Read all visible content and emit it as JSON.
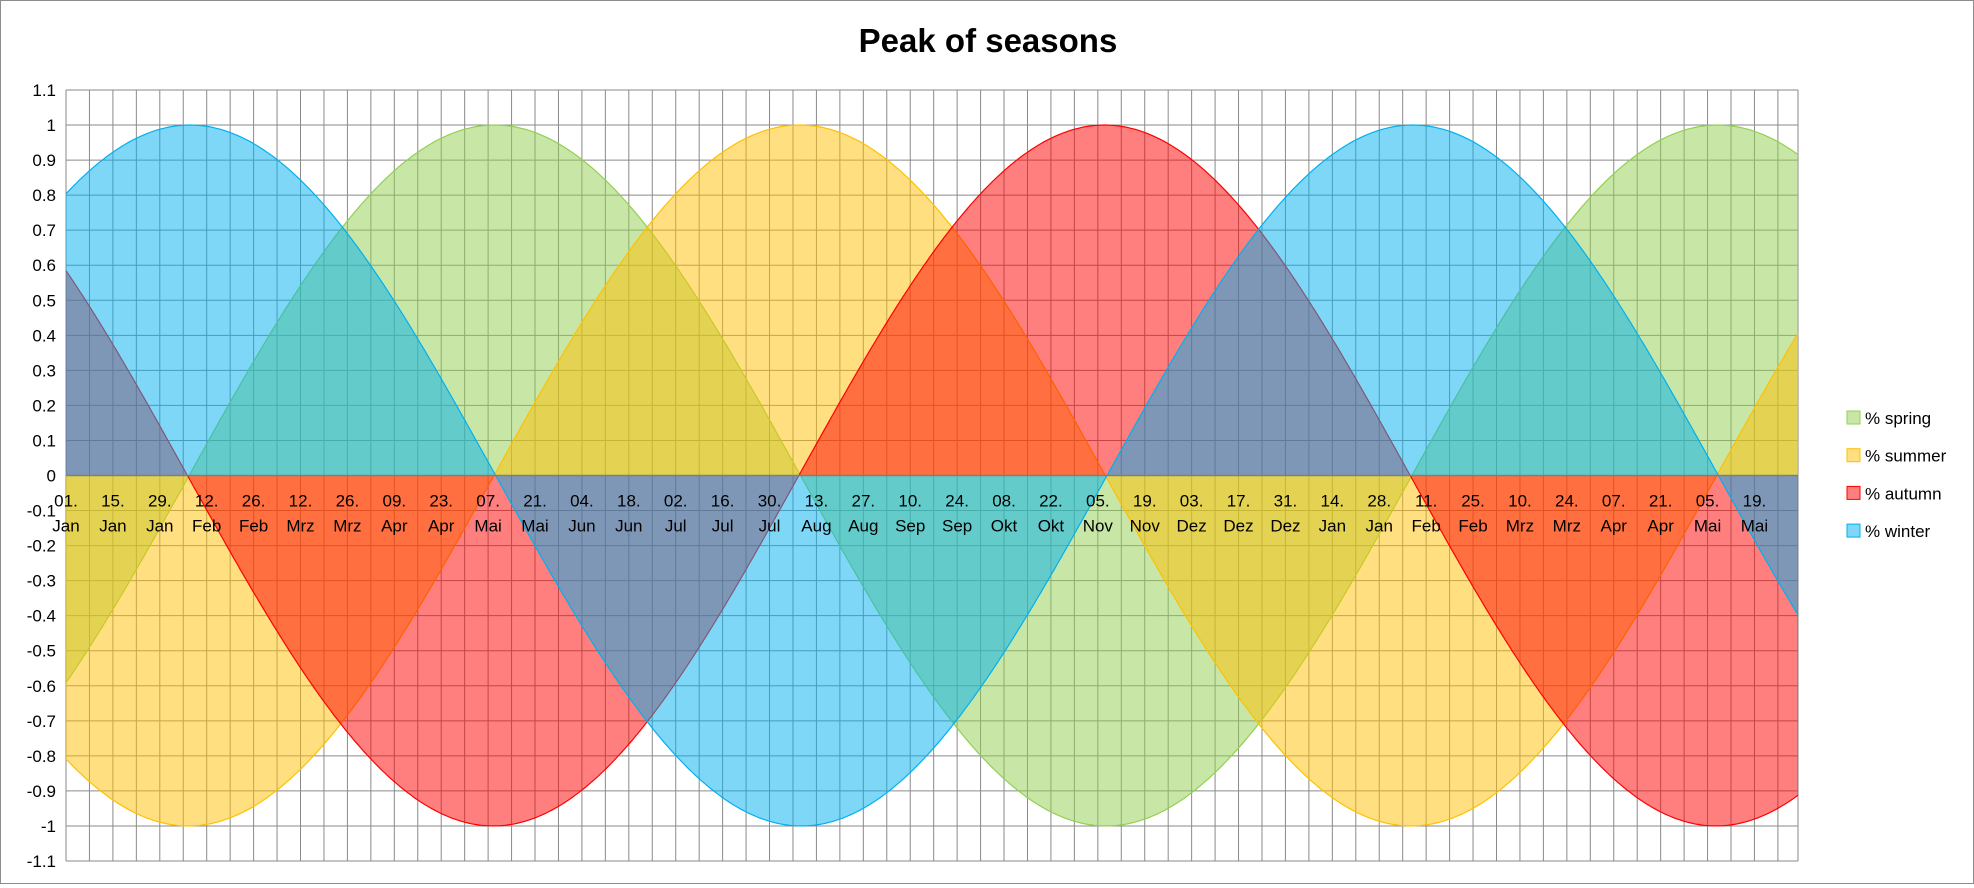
{
  "chart_data": {
    "type": "area",
    "title": "Peak of seasons",
    "xlabel": "",
    "ylabel": "",
    "ylim": [
      -1.1,
      1.1
    ],
    "ytick_step": 0.1,
    "yticks": [
      "1.1",
      "1",
      "0.9",
      "0.8",
      "0.7",
      "0.6",
      "0.5",
      "0.4",
      "0.3",
      "0.2",
      "0.1",
      "0",
      "-0.1",
      "-0.2",
      "-0.3",
      "-0.4",
      "-0.5",
      "-0.6",
      "-0.7",
      "-0.8",
      "-0.9",
      "-1",
      "-1.1"
    ],
    "x_unit": "days since 01. Jan",
    "xlim": [
      0,
      517
    ],
    "xtick_step_days": 14,
    "x_minor_grid_days": 7,
    "grid": true,
    "xtick_labels": [
      [
        "01.",
        "Jan"
      ],
      [
        "15.",
        "Jan"
      ],
      [
        "29.",
        "Jan"
      ],
      [
        "12.",
        "Feb"
      ],
      [
        "26.",
        "Feb"
      ],
      [
        "12.",
        "Mrz"
      ],
      [
        "26.",
        "Mrz"
      ],
      [
        "09.",
        "Apr"
      ],
      [
        "23.",
        "Apr"
      ],
      [
        "07.",
        "Mai"
      ],
      [
        "21.",
        "Mai"
      ],
      [
        "04.",
        "Jun"
      ],
      [
        "18.",
        "Jun"
      ],
      [
        "02.",
        "Jul"
      ],
      [
        "16.",
        "Jul"
      ],
      [
        "30.",
        "Jul"
      ],
      [
        "13.",
        "Aug"
      ],
      [
        "27.",
        "Aug"
      ],
      [
        "10.",
        "Sep"
      ],
      [
        "24.",
        "Sep"
      ],
      [
        "08.",
        "Okt"
      ],
      [
        "22.",
        "Okt"
      ],
      [
        "05.",
        "Nov"
      ],
      [
        "19.",
        "Nov"
      ],
      [
        "03.",
        "Dez"
      ],
      [
        "17.",
        "Dez"
      ],
      [
        "31.",
        "Dez"
      ],
      [
        "14.",
        "Jan"
      ],
      [
        "28.",
        "Jan"
      ],
      [
        "11.",
        "Feb"
      ],
      [
        "25.",
        "Feb"
      ],
      [
        "10.",
        "Mrz"
      ],
      [
        "24.",
        "Mrz"
      ],
      [
        "07.",
        "Apr"
      ],
      [
        "21.",
        "Apr"
      ],
      [
        "05.",
        "Mai"
      ],
      [
        "19.",
        "Mai"
      ]
    ],
    "legend_position": "right",
    "series": [
      {
        "name": "% spring",
        "model": "cosine",
        "amplitude": 1,
        "period_days": 365,
        "peak_day": 128,
        "color": "#92d050"
      },
      {
        "name": "% summer",
        "model": "cosine",
        "amplitude": 1,
        "period_days": 365,
        "peak_day": 219,
        "color": "#ffc000"
      },
      {
        "name": "% autumn",
        "model": "cosine",
        "amplitude": 1,
        "period_days": 365,
        "peak_day": 310,
        "color": "#ff0000"
      },
      {
        "name": "% winter",
        "model": "cosine",
        "amplitude": 1,
        "period_days": 365,
        "peak_day": 37,
        "color": "#00b0f0"
      }
    ]
  }
}
